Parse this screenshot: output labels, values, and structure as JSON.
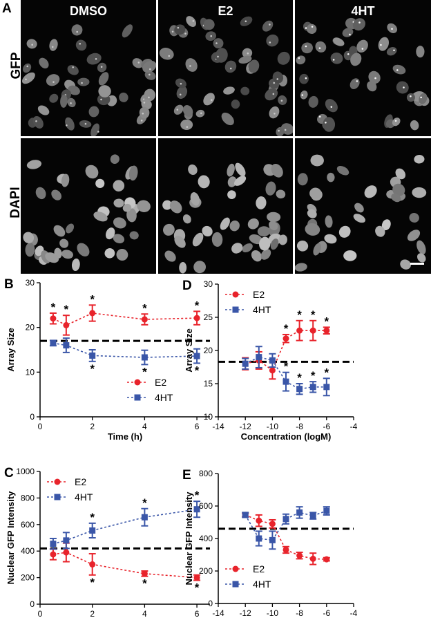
{
  "panel_a": {
    "letter": "A",
    "row_labels": [
      "GFP",
      "DAPI"
    ],
    "column_labels": [
      "DMSO",
      "E2",
      "4HT"
    ]
  },
  "chart_data": [
    {
      "panel": "B",
      "type": "line",
      "xlabel": "Time (h)",
      "ylabel": "Array Size",
      "xlim": [
        0,
        6.5
      ],
      "ylim": [
        0,
        30
      ],
      "xticks": [
        0,
        2,
        4,
        6
      ],
      "yticks": [
        0,
        10,
        20,
        30
      ],
      "baseline": 17,
      "legend_position": "bottom-right",
      "x": [
        0.5,
        1,
        2,
        4,
        6
      ],
      "series": [
        {
          "name": "E2",
          "color": "#e8232b",
          "marker": "circle",
          "values": [
            22,
            20.5,
            23.2,
            21.8,
            22.1
          ],
          "err": [
            1.2,
            2.2,
            1.8,
            1.2,
            1.5
          ],
          "stars": [
            true,
            true,
            true,
            true,
            true
          ],
          "star_side": "above"
        },
        {
          "name": "4HT",
          "color": "#3a56a8",
          "marker": "square",
          "values": [
            16.5,
            16.0,
            13.7,
            13.3,
            13.6
          ],
          "err": [
            0.6,
            1.6,
            1.3,
            1.6,
            1.6
          ],
          "stars": [
            false,
            false,
            true,
            true,
            true
          ],
          "star_side": "below"
        }
      ]
    },
    {
      "panel": "C",
      "type": "line",
      "xlabel": "Time (h)",
      "ylabel": "Nuclear GFP Intensity",
      "xlim": [
        0,
        6.5
      ],
      "ylim": [
        0,
        1000
      ],
      "xticks": [
        0,
        2,
        4,
        6
      ],
      "yticks": [
        0,
        200,
        400,
        600,
        800,
        1000
      ],
      "baseline": 420,
      "legend_position": "top-left",
      "x": [
        0.5,
        1,
        2,
        4,
        6
      ],
      "series": [
        {
          "name": "E2",
          "color": "#e8232b",
          "marker": "circle",
          "values": [
            375,
            390,
            300,
            230,
            200
          ],
          "err": [
            40,
            70,
            80,
            20,
            20
          ],
          "stars": [
            false,
            false,
            true,
            true,
            true
          ],
          "star_side": "below"
        },
        {
          "name": "4HT",
          "color": "#3a56a8",
          "marker": "square",
          "values": [
            455,
            480,
            555,
            655,
            715
          ],
          "err": [
            40,
            60,
            55,
            65,
            60
          ],
          "stars": [
            false,
            false,
            true,
            true,
            true
          ],
          "star_side": "above"
        }
      ]
    },
    {
      "panel": "D",
      "type": "line",
      "xlabel": "Concentration (logM)",
      "ylabel": "Array Size",
      "xlim": [
        -14,
        -4
      ],
      "ylim": [
        10,
        30
      ],
      "xticks": [
        -14,
        -12,
        -10,
        -8,
        -6,
        -4
      ],
      "yticks": [
        10,
        15,
        20,
        25,
        30
      ],
      "baseline": 18.3,
      "legend_position": "top-left",
      "x": [
        -12,
        -11,
        -10,
        -9,
        -8,
        -7,
        -6
      ],
      "series": [
        {
          "name": "E2",
          "color": "#e8232b",
          "marker": "circle",
          "values": [
            18.0,
            18.5,
            17.0,
            21.8,
            23.0,
            23.0,
            23.0
          ],
          "err": [
            0.9,
            1.3,
            1.3,
            0.6,
            1.5,
            1.5,
            0.5
          ],
          "stars": [
            false,
            false,
            false,
            true,
            true,
            true,
            true
          ],
          "star_side": "above"
        },
        {
          "name": "4HT",
          "color": "#3a56a8",
          "marker": "square",
          "values": [
            18.0,
            19.0,
            18.5,
            15.3,
            14.2,
            14.5,
            14.5
          ],
          "err": [
            0.8,
            1.6,
            1.0,
            1.4,
            0.8,
            0.8,
            1.3
          ],
          "stars": [
            false,
            false,
            false,
            true,
            true,
            true,
            true
          ],
          "star_side": "above"
        }
      ]
    },
    {
      "panel": "E",
      "type": "line",
      "xlabel": "Concentration (logM)",
      "ylabel": "Nuclear GFP Intensity",
      "xlim": [
        -14,
        -4
      ],
      "ylim": [
        0,
        800
      ],
      "xticks": [
        -14,
        -12,
        -10,
        -8,
        -6,
        -4
      ],
      "yticks": [
        0,
        200,
        400,
        600,
        800
      ],
      "baseline": 460,
      "legend_position": "bottom-left",
      "x": [
        -12,
        -11,
        -10,
        -9,
        -8,
        -7,
        -6
      ],
      "series": [
        {
          "name": "E2",
          "color": "#e8232b",
          "marker": "circle",
          "values": [
            545,
            510,
            490,
            330,
            295,
            275,
            272
          ],
          "err": [
            10,
            35,
            25,
            20,
            20,
            35,
            10
          ],
          "stars": [
            false,
            false,
            false,
            false,
            false,
            false,
            false
          ],
          "star_side": "above"
        },
        {
          "name": "4HT",
          "color": "#3a56a8",
          "marker": "square",
          "values": [
            545,
            400,
            390,
            520,
            560,
            540,
            570
          ],
          "err": [
            15,
            45,
            55,
            30,
            35,
            20,
            25
          ],
          "stars": [
            false,
            false,
            false,
            false,
            false,
            false,
            false
          ],
          "star_side": "above"
        }
      ]
    }
  ]
}
